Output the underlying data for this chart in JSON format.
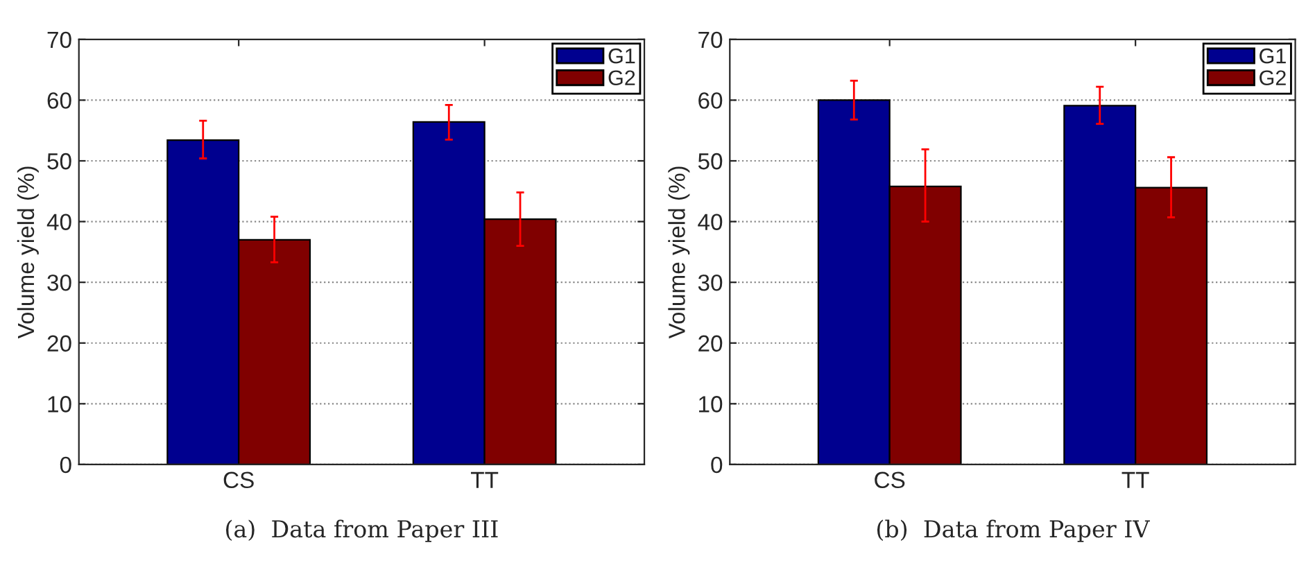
{
  "chart_data": [
    {
      "type": "bar",
      "title": "(a)  Data from Paper III",
      "ylabel": "Volume yield (%)",
      "categories": [
        "CS",
        "TT"
      ],
      "series": [
        {
          "name": "G1",
          "color": "#00008f",
          "values": [
            53.4,
            56.4
          ],
          "errors": [
            [
              50.4,
              56.6
            ],
            [
              53.5,
              59.2
            ]
          ]
        },
        {
          "name": "G2",
          "color": "#800000",
          "values": [
            37.0,
            40.4
          ],
          "errors": [
            [
              33.3,
              40.8
            ],
            [
              36.0,
              44.8
            ]
          ]
        }
      ],
      "ylim": [
        0,
        70
      ],
      "yticks": [
        0,
        10,
        20,
        30,
        40,
        50,
        60,
        70
      ],
      "grid": "y",
      "legend": "top right"
    },
    {
      "type": "bar",
      "title": "(b)  Data from Paper IV",
      "ylabel": "Volume yield (%)",
      "categories": [
        "CS",
        "TT"
      ],
      "series": [
        {
          "name": "G1",
          "color": "#00008f",
          "values": [
            60.0,
            59.1
          ],
          "errors": [
            [
              56.8,
              63.2
            ],
            [
              56.1,
              62.2
            ]
          ]
        },
        {
          "name": "G2",
          "color": "#800000",
          "values": [
            45.8,
            45.6
          ],
          "errors": [
            [
              40.0,
              51.9
            ],
            [
              40.7,
              50.6
            ]
          ]
        }
      ],
      "ylim": [
        0,
        70
      ],
      "yticks": [
        0,
        10,
        20,
        30,
        40,
        50,
        60,
        70
      ],
      "grid": "y",
      "legend": "top right"
    }
  ]
}
